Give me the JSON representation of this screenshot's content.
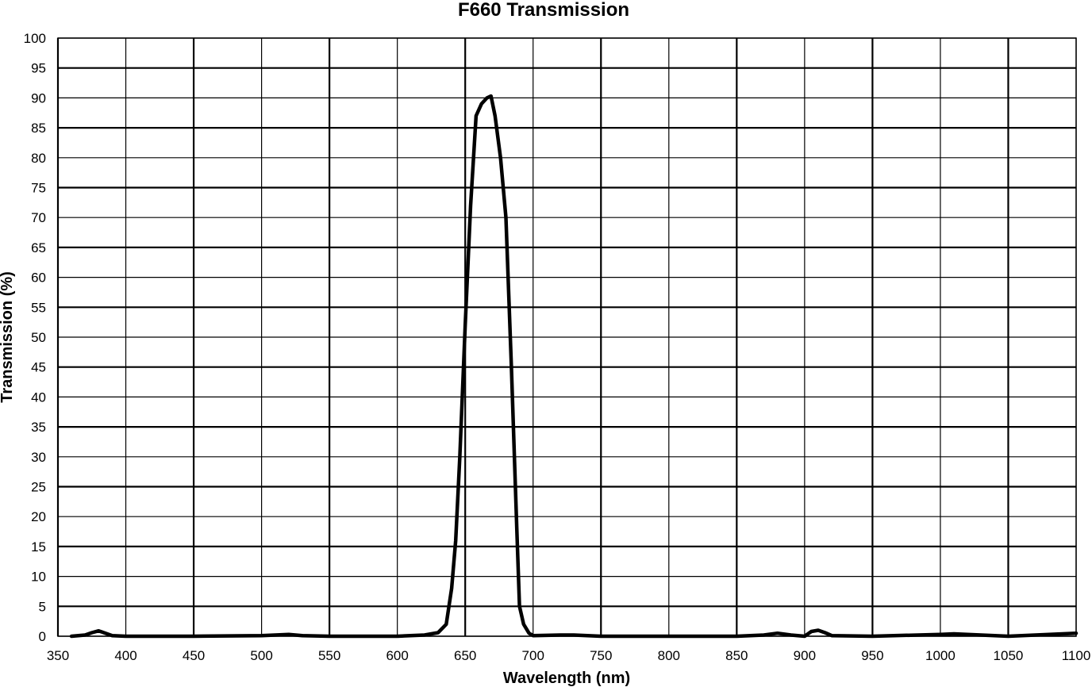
{
  "chart_data": {
    "type": "line",
    "title": "F660 Transmission",
    "xlabel": "Wavelength (nm)",
    "ylabel": "Transmission (%)",
    "xlim": [
      350,
      1100
    ],
    "ylim": [
      0,
      100
    ],
    "x_ticks": [
      350,
      400,
      450,
      500,
      550,
      600,
      650,
      700,
      750,
      800,
      850,
      900,
      950,
      1000,
      1050,
      1100
    ],
    "y_ticks": [
      0,
      5,
      10,
      15,
      20,
      25,
      30,
      35,
      40,
      45,
      50,
      55,
      60,
      65,
      70,
      75,
      80,
      85,
      90,
      95,
      100
    ],
    "grid": true,
    "line_color": "#000000",
    "series": [
      {
        "x": [
          360,
          370,
          375,
          380,
          385,
          390,
          400,
          450,
          500,
          520,
          530,
          550,
          600,
          620,
          630,
          636,
          640,
          643,
          646,
          650,
          654,
          658,
          662,
          666,
          669,
          672,
          676,
          680,
          684,
          688,
          690,
          693,
          697,
          700,
          720,
          730,
          750,
          800,
          850,
          870,
          880,
          890,
          900,
          905,
          910,
          915,
          920,
          950,
          1000,
          1010,
          1020,
          1050,
          1080,
          1100
        ],
        "y": [
          0,
          0.2,
          0.6,
          0.9,
          0.5,
          0.1,
          0,
          0,
          0.1,
          0.3,
          0.1,
          0,
          0,
          0.2,
          0.6,
          2,
          8,
          16,
          30,
          52,
          72,
          87,
          89,
          90,
          90.3,
          87,
          80,
          70,
          45,
          18,
          5,
          2,
          0.5,
          0.1,
          0.2,
          0.2,
          0,
          0,
          0,
          0.2,
          0.5,
          0.2,
          0,
          0.8,
          1,
          0.6,
          0.1,
          0,
          0.3,
          0.4,
          0.3,
          0,
          0.3,
          0.5
        ]
      }
    ]
  }
}
